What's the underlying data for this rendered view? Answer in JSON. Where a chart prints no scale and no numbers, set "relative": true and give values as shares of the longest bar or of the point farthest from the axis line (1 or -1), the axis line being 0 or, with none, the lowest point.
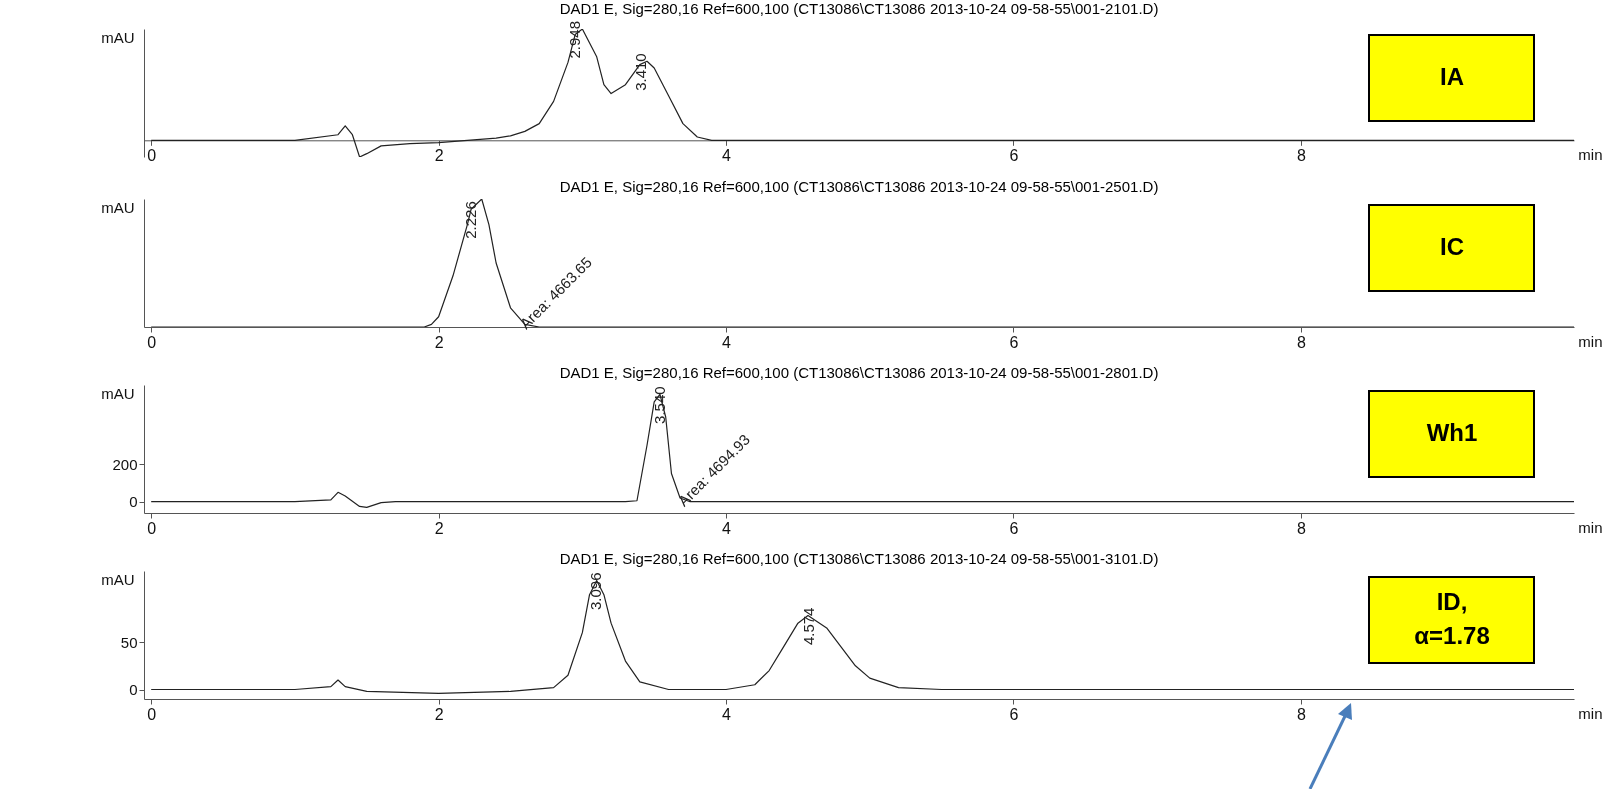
{
  "chart_data": [
    {
      "type": "line",
      "relative": true,
      "title": "DAD1 E, Sig=280,16 Ref=600,100 (CT13086\\CT13086 2013-10-24 09-58-55\\001-2101.D)",
      "ylabel": "mAU",
      "xlabel": "min",
      "xlim": [
        -0.05,
        9.9
      ],
      "xticks": [
        0,
        2,
        4,
        6,
        8
      ],
      "grid": false,
      "color": "#222222",
      "x": [
        0,
        0.5,
        1.0,
        1.3,
        1.35,
        1.4,
        1.45,
        1.5,
        1.6,
        1.8,
        2.0,
        2.2,
        2.4,
        2.5,
        2.6,
        2.7,
        2.8,
        2.9,
        2.95,
        3.0,
        3.1,
        3.15,
        3.2,
        3.3,
        3.4,
        3.45,
        3.5,
        3.6,
        3.7,
        3.8,
        3.9,
        4.0,
        4.5,
        5,
        6,
        7,
        8,
        9,
        9.9
      ],
      "values": [
        0,
        0,
        0,
        0.05,
        0.13,
        0.05,
        -0.15,
        -0.12,
        -0.05,
        -0.03,
        -0.02,
        0,
        0.02,
        0.04,
        0.08,
        0.15,
        0.35,
        0.7,
        0.95,
        1,
        0.75,
        0.5,
        0.42,
        0.5,
        0.68,
        0.71,
        0.65,
        0.4,
        0.15,
        0.03,
        0,
        0,
        0,
        0,
        0,
        0,
        0,
        0,
        0
      ],
      "annotations": [
        "IA",
        {
          "text": "2.948",
          "x": 2.95,
          "y": 1
        },
        {
          "text": "3.410",
          "x": 3.41,
          "y": 0.71
        }
      ]
    },
    {
      "type": "line",
      "relative": true,
      "title": "DAD1 E, Sig=280,16 Ref=600,100 (CT13086\\CT13086 2013-10-24 09-58-55\\001-2501.D)",
      "ylabel": "mAU",
      "xlabel": "min",
      "xlim": [
        -0.05,
        9.9
      ],
      "xticks": [
        0,
        2,
        4,
        6,
        8
      ],
      "grid": false,
      "color": "#222222",
      "x": [
        0,
        1,
        1.9,
        1.95,
        2.0,
        2.1,
        2.2,
        2.226,
        2.3,
        2.35,
        2.4,
        2.5,
        2.6,
        2.7,
        3,
        5,
        7,
        9.9
      ],
      "values": [
        0,
        0,
        0,
        0.02,
        0.08,
        0.4,
        0.8,
        0.92,
        1,
        0.8,
        0.5,
        0.15,
        0.02,
        0,
        0,
        0,
        0,
        0
      ],
      "annotations": [
        "IC",
        {
          "text": "2.226",
          "x": 2.226,
          "y": 0.92
        },
        {
          "text": "Area: 4663.65",
          "x": 2.6,
          "y": 0.02
        }
      ]
    },
    {
      "type": "line",
      "title": "DAD1 E, Sig=280,16 Ref=600,100 (CT13086\\CT13086 2013-10-24 09-58-55\\001-2801.D)",
      "ylabel": "mAU",
      "xlabel": "min",
      "xlim": [
        -0.05,
        9.9
      ],
      "xticks": [
        0,
        2,
        4,
        6,
        8
      ],
      "ylim": [
        -60,
        620
      ],
      "yticks": [
        0,
        200
      ],
      "grid": false,
      "color": "#222222",
      "x": [
        0,
        1.0,
        1.25,
        1.3,
        1.35,
        1.45,
        1.5,
        1.6,
        1.7,
        1.8,
        3.3,
        3.38,
        3.45,
        3.5,
        3.54,
        3.58,
        3.62,
        3.68,
        3.75,
        4,
        6,
        8,
        9.9
      ],
      "values": [
        0,
        0,
        10,
        50,
        30,
        -25,
        -30,
        -5,
        0,
        0,
        0,
        5,
        300,
        530,
        570,
        450,
        150,
        20,
        0,
        0,
        0,
        0,
        0
      ],
      "annotations": [
        "Wh1",
        {
          "text": "3.540",
          "x": 3.54,
          "y": 570
        },
        {
          "text": "Area: 4694.93",
          "x": 3.7,
          "y": 0
        }
      ]
    },
    {
      "type": "line",
      "title": "DAD1 E, Sig=280,16 Ref=600,100 (CT13086\\CT13086 2013-10-24 09-58-55\\001-3101.D)",
      "ylabel": "mAU",
      "xlabel": "min",
      "xlim": [
        -0.05,
        9.9
      ],
      "xticks": [
        0,
        2,
        4,
        6,
        8
      ],
      "ylim": [
        -10,
        125
      ],
      "yticks": [
        0,
        50
      ],
      "grid": false,
      "color": "#222222",
      "x": [
        0,
        1.0,
        1.25,
        1.3,
        1.35,
        1.5,
        2,
        2.5,
        2.8,
        2.9,
        3.0,
        3.05,
        3.1,
        3.15,
        3.2,
        3.3,
        3.4,
        3.6,
        4.0,
        4.2,
        4.3,
        4.4,
        4.5,
        4.57,
        4.7,
        4.8,
        4.9,
        5.0,
        5.2,
        5.5,
        7,
        9.9
      ],
      "values": [
        0,
        0,
        3,
        10,
        3,
        -2,
        -4,
        -2,
        2,
        15,
        60,
        100,
        115,
        100,
        70,
        30,
        8,
        0,
        0,
        5,
        20,
        45,
        70,
        78,
        65,
        45,
        25,
        12,
        2,
        0,
        0,
        0
      ],
      "annotations": [
        "ID,\nα=1.78",
        {
          "text": "3.096",
          "x": 3.096,
          "y": 115
        },
        {
          "text": "4.574",
          "x": 4.574,
          "y": 78
        }
      ]
    }
  ]
}
